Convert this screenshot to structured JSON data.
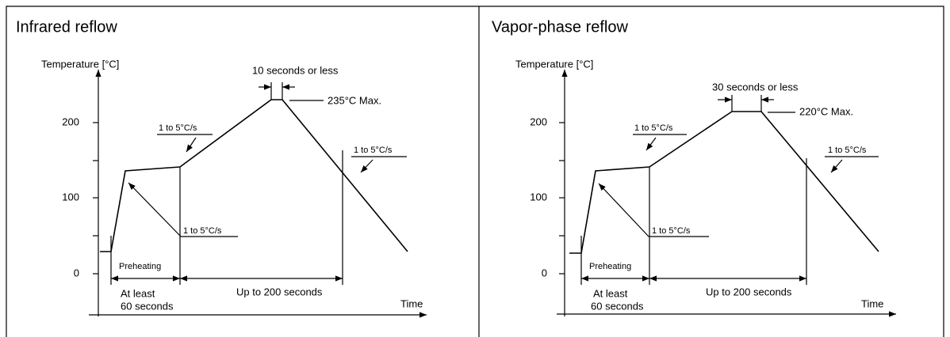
{
  "panels": [
    {
      "title": "Infrared reflow",
      "y_label": "Temperature [°C]",
      "x_label": "Time",
      "yticks": [
        200,
        100,
        0
      ],
      "peak_time": "10 seconds or less",
      "peak_temp": "235°C Max.",
      "ramp_rates": [
        "1 to 5°C/s",
        "1 to 5°C/s",
        "1 to 5°C/s"
      ],
      "preheating": "Preheating",
      "preheat_time": [
        "At least",
        "60 seconds"
      ],
      "reflow_time": "Up to 200 seconds"
    },
    {
      "title": "Vapor-phase reflow",
      "y_label": "Temperature [°C]",
      "x_label": "Time",
      "yticks": [
        200,
        100,
        0
      ],
      "peak_time": "30 seconds or less",
      "peak_temp": "220°C Max.",
      "ramp_rates": [
        "1 to 5°C/s",
        "1 to 5°C/s",
        "1 to 5°C/s"
      ],
      "preheating": "Preheating",
      "preheat_time": [
        "At least",
        "60 seconds"
      ],
      "reflow_time": "Up to 200 seconds"
    }
  ]
}
